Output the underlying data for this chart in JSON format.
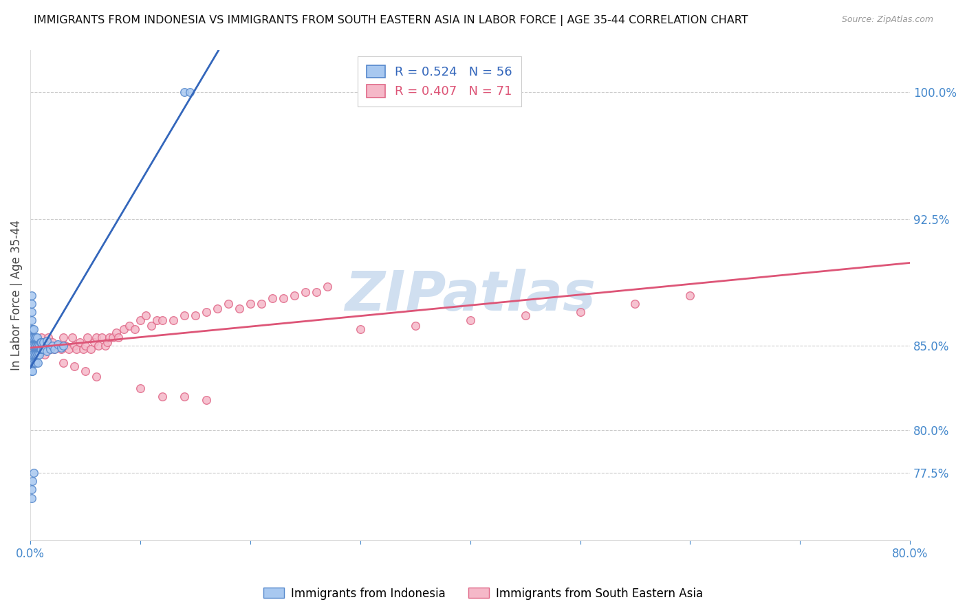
{
  "title": "IMMIGRANTS FROM INDONESIA VS IMMIGRANTS FROM SOUTH EASTERN ASIA IN LABOR FORCE | AGE 35-44 CORRELATION CHART",
  "source": "Source: ZipAtlas.com",
  "ylabel": "In Labor Force | Age 35-44",
  "blue_label": "Immigrants from Indonesia",
  "pink_label": "Immigrants from South Eastern Asia",
  "blue_R": 0.524,
  "blue_N": 56,
  "pink_R": 0.407,
  "pink_N": 71,
  "blue_color": "#a8c8f0",
  "pink_color": "#f5b8c8",
  "blue_edge_color": "#5588cc",
  "pink_edge_color": "#e06888",
  "blue_line_color": "#3366bb",
  "pink_line_color": "#dd5577",
  "marker_size": 70,
  "marker_linewidth": 1.0,
  "background_color": "#ffffff",
  "grid_color": "#cccccc",
  "axis_color": "#4488cc",
  "title_fontsize": 11.5,
  "legend_fontsize": 13,
  "tick_fontsize": 12,
  "ylabel_fontsize": 12,
  "xlim": [
    0.0,
    0.8
  ],
  "ylim": [
    0.735,
    1.025
  ],
  "y_tick_values": [
    0.775,
    0.8,
    0.85,
    0.925,
    1.0
  ],
  "x_tick_positions": [
    0.0,
    0.1,
    0.2,
    0.3,
    0.4,
    0.5,
    0.6,
    0.7,
    0.8
  ],
  "x_tick_labels": [
    "0.0%",
    "",
    "",
    "",
    "",
    "",
    "",
    "",
    "80.0%"
  ],
  "blue_scatter_x": [
    0.001,
    0.001,
    0.001,
    0.001,
    0.001,
    0.001,
    0.001,
    0.001,
    0.001,
    0.001,
    0.002,
    0.002,
    0.002,
    0.002,
    0.002,
    0.003,
    0.003,
    0.003,
    0.003,
    0.003,
    0.004,
    0.004,
    0.004,
    0.004,
    0.005,
    0.005,
    0.005,
    0.005,
    0.006,
    0.006,
    0.006,
    0.007,
    0.007,
    0.007,
    0.008,
    0.008,
    0.009,
    0.009,
    0.01,
    0.01,
    0.012,
    0.012,
    0.015,
    0.015,
    0.018,
    0.02,
    0.022,
    0.025,
    0.028,
    0.03,
    0.001,
    0.001,
    0.002,
    0.003,
    0.14,
    0.145
  ],
  "blue_scatter_y": [
    0.85,
    0.855,
    0.86,
    0.865,
    0.87,
    0.875,
    0.84,
    0.835,
    0.845,
    0.88,
    0.85,
    0.855,
    0.86,
    0.845,
    0.835,
    0.85,
    0.855,
    0.84,
    0.845,
    0.86,
    0.85,
    0.855,
    0.845,
    0.84,
    0.85,
    0.855,
    0.845,
    0.84,
    0.85,
    0.845,
    0.855,
    0.85,
    0.845,
    0.84,
    0.85,
    0.845,
    0.848,
    0.852,
    0.848,
    0.852,
    0.848,
    0.852,
    0.847,
    0.853,
    0.848,
    0.85,
    0.848,
    0.851,
    0.849,
    0.85,
    0.76,
    0.765,
    0.77,
    0.775,
    1.0,
    1.0
  ],
  "pink_scatter_x": [
    0.001,
    0.002,
    0.01,
    0.012,
    0.013,
    0.015,
    0.016,
    0.018,
    0.02,
    0.022,
    0.025,
    0.028,
    0.03,
    0.032,
    0.035,
    0.038,
    0.04,
    0.042,
    0.045,
    0.048,
    0.05,
    0.052,
    0.055,
    0.058,
    0.06,
    0.062,
    0.065,
    0.068,
    0.07,
    0.072,
    0.075,
    0.078,
    0.08,
    0.085,
    0.09,
    0.095,
    0.1,
    0.105,
    0.11,
    0.115,
    0.12,
    0.13,
    0.14,
    0.15,
    0.16,
    0.17,
    0.18,
    0.19,
    0.2,
    0.21,
    0.22,
    0.23,
    0.24,
    0.25,
    0.26,
    0.27,
    0.03,
    0.04,
    0.05,
    0.06,
    0.1,
    0.12,
    0.14,
    0.16,
    0.3,
    0.35,
    0.4,
    0.45,
    0.5,
    0.55,
    0.6
  ],
  "pink_scatter_y": [
    0.85,
    0.85,
    0.855,
    0.85,
    0.845,
    0.85,
    0.855,
    0.848,
    0.852,
    0.848,
    0.85,
    0.848,
    0.855,
    0.85,
    0.848,
    0.855,
    0.85,
    0.848,
    0.852,
    0.848,
    0.85,
    0.855,
    0.848,
    0.852,
    0.855,
    0.85,
    0.855,
    0.85,
    0.852,
    0.855,
    0.855,
    0.858,
    0.855,
    0.86,
    0.862,
    0.86,
    0.865,
    0.868,
    0.862,
    0.865,
    0.865,
    0.865,
    0.868,
    0.868,
    0.87,
    0.872,
    0.875,
    0.872,
    0.875,
    0.875,
    0.878,
    0.878,
    0.88,
    0.882,
    0.882,
    0.885,
    0.84,
    0.838,
    0.835,
    0.832,
    0.825,
    0.82,
    0.82,
    0.818,
    0.86,
    0.862,
    0.865,
    0.868,
    0.87,
    0.875,
    0.88
  ],
  "watermark_text": "ZIPatlas",
  "watermark_color": "#d0dff0"
}
